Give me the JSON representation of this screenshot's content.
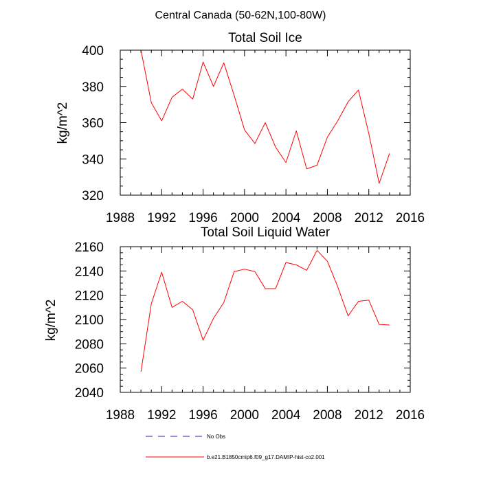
{
  "figure": {
    "title": "Central Canada (50-62N,100-80W)"
  },
  "legend": {
    "position": "bottom",
    "entries": [
      {
        "label": "No Obs",
        "color": "#1f1fb4",
        "dash": "dashed"
      },
      {
        "label": "b.e21.B1850cmip6.f09_g17.DAMIP-hist-co2.001",
        "color": "#ff0000",
        "dash": "solid"
      }
    ]
  },
  "chart_data": [
    {
      "type": "line",
      "title": "Total Soil Ice",
      "ylabel": "kg/m^2",
      "xlabel": "",
      "xlim": [
        1988,
        2016
      ],
      "ylim": [
        320,
        400
      ],
      "xticks": [
        1988,
        1992,
        1996,
        2000,
        2004,
        2008,
        2012,
        2016
      ],
      "yticks": [
        320,
        340,
        360,
        380,
        400
      ],
      "grid": false,
      "series": [
        {
          "color": "#ff0000",
          "x": [
            1990,
            1991,
            1992,
            1993,
            1994,
            1995,
            1996,
            1997,
            1998,
            1999,
            2000,
            2001,
            2002,
            2003,
            2004,
            2005,
            2006,
            2007,
            2008,
            2009,
            2010,
            2011,
            2012,
            2013,
            2014
          ],
          "y": [
            400,
            371,
            361,
            374,
            378.5,
            373,
            393.5,
            380,
            393,
            375,
            356,
            348.5,
            360,
            346.5,
            338,
            355.5,
            334.5,
            336.5,
            352,
            361,
            371.5,
            378,
            354,
            326.5,
            343
          ]
        }
      ]
    },
    {
      "type": "line",
      "title": "Total Soil Liquid Water",
      "ylabel": "kg/m^2",
      "xlabel": "",
      "xlim": [
        1988,
        2016
      ],
      "ylim": [
        2040,
        2160
      ],
      "xticks": [
        1988,
        1992,
        1996,
        2000,
        2004,
        2008,
        2012,
        2016
      ],
      "yticks": [
        2040,
        2060,
        2080,
        2100,
        2120,
        2140,
        2160
      ],
      "grid": false,
      "series": [
        {
          "color": "#ff0000",
          "x": [
            1990,
            1991,
            1992,
            1993,
            1994,
            1995,
            1996,
            1997,
            1998,
            1999,
            2000,
            2001,
            2002,
            2003,
            2004,
            2005,
            2006,
            2007,
            2008,
            2009,
            2010,
            2011,
            2012,
            2013,
            2014
          ],
          "y": [
            2057,
            2113,
            2139,
            2110,
            2115,
            2108,
            2083,
            2101,
            2114,
            2139.5,
            2141.5,
            2139.5,
            2125.5,
            2125.5,
            2147,
            2145,
            2140.5,
            2157,
            2148,
            2127,
            2103,
            2115,
            2116,
            2096,
            2095.5
          ]
        }
      ]
    }
  ]
}
